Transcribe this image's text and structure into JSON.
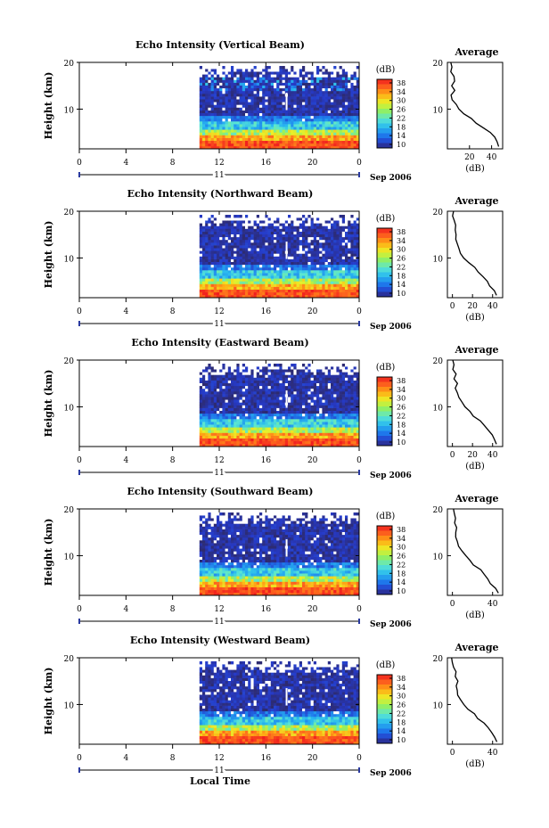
{
  "figure": {
    "xlabel": "Local Time",
    "x_ticks": [
      "0",
      "4",
      "8",
      "12",
      "16",
      "20",
      "0"
    ],
    "day_label": "11",
    "date_label": "Sep 2006",
    "ylabel": "Height (km)",
    "y_ticks": [
      "20",
      "10"
    ],
    "colorbar_unit": "(dB)",
    "colorbar_ticks": [
      "38",
      "34",
      "30",
      "26",
      "22",
      "18",
      "14",
      "10"
    ],
    "avg_title": "Average",
    "avg_xlabel": "(dB)",
    "avg_y_ticks": [
      "20",
      "10"
    ]
  },
  "chart_data": [
    {
      "type": "heatmap",
      "title": "Echo Intensity (Vertical Beam)",
      "xlabel": "Local Time",
      "ylabel": "Height (km)",
      "x_range_hours": [
        0,
        24
      ],
      "data_start_hour": 10.3,
      "ylim_km": [
        1.5,
        20
      ],
      "colorbar_range_db": [
        10,
        38
      ],
      "profile": {
        "xlabel": "(dB)",
        "x_ticks": [
          "20",
          "40"
        ],
        "xlim": [
          0,
          50
        ],
        "points": [
          [
            2,
            47
          ],
          [
            3,
            44
          ],
          [
            4,
            42
          ],
          [
            5,
            38
          ],
          [
            6,
            32
          ],
          [
            7,
            27
          ],
          [
            8,
            22
          ],
          [
            9,
            16
          ],
          [
            10,
            10
          ],
          [
            11,
            7
          ],
          [
            12,
            5
          ],
          [
            13,
            4
          ],
          [
            14,
            6
          ],
          [
            15,
            4
          ],
          [
            16,
            7
          ],
          [
            17,
            5
          ],
          [
            18,
            4
          ],
          [
            19,
            3
          ],
          [
            20,
            3
          ]
        ]
      }
    },
    {
      "type": "heatmap",
      "title": "Echo Intensity (Northward Beam)",
      "xlabel": "Local Time",
      "ylabel": "Height (km)",
      "x_range_hours": [
        0,
        24
      ],
      "data_start_hour": 10.3,
      "ylim_km": [
        1.5,
        20
      ],
      "colorbar_range_db": [
        10,
        38
      ],
      "profile": {
        "xlabel": "(dB)",
        "x_ticks": [
          "0",
          "20",
          "40"
        ],
        "xlim": [
          -5,
          50
        ],
        "points": [
          [
            2,
            45
          ],
          [
            3,
            42
          ],
          [
            4,
            38
          ],
          [
            5,
            34
          ],
          [
            6,
            30
          ],
          [
            7,
            26
          ],
          [
            8,
            21
          ],
          [
            9,
            16
          ],
          [
            10,
            12
          ],
          [
            11,
            9
          ],
          [
            12,
            6
          ],
          [
            13,
            5
          ],
          [
            14,
            3
          ],
          [
            15,
            4
          ],
          [
            16,
            2
          ],
          [
            17,
            3
          ],
          [
            18,
            2
          ],
          [
            19,
            1
          ],
          [
            20,
            0
          ]
        ]
      }
    },
    {
      "type": "heatmap",
      "title": "Echo Intensity (Eastward Beam)",
      "xlabel": "Local Time",
      "ylabel": "Height (km)",
      "x_range_hours": [
        0,
        24
      ],
      "data_start_hour": 10.3,
      "ylim_km": [
        1.5,
        20
      ],
      "colorbar_range_db": [
        10,
        38
      ],
      "profile": {
        "xlabel": "(dB)",
        "x_ticks": [
          "0",
          "20",
          "40"
        ],
        "xlim": [
          -5,
          50
        ],
        "points": [
          [
            2,
            45
          ],
          [
            3,
            43
          ],
          [
            4,
            39
          ],
          [
            5,
            35
          ],
          [
            6,
            31
          ],
          [
            7,
            27
          ],
          [
            8,
            22
          ],
          [
            9,
            17
          ],
          [
            10,
            12
          ],
          [
            11,
            9
          ],
          [
            12,
            6
          ],
          [
            13,
            4
          ],
          [
            14,
            3
          ],
          [
            15,
            5
          ],
          [
            16,
            2
          ],
          [
            17,
            4
          ],
          [
            18,
            1
          ],
          [
            19,
            2
          ],
          [
            20,
            0
          ]
        ]
      }
    },
    {
      "type": "heatmap",
      "title": "Echo Intensity (Southward Beam)",
      "xlabel": "Local Time",
      "ylabel": "Height (km)",
      "x_range_hours": [
        0,
        24
      ],
      "data_start_hour": 10.3,
      "ylim_km": [
        1.5,
        20
      ],
      "colorbar_range_db": [
        10,
        38
      ],
      "profile": {
        "xlabel": "(dB)",
        "x_ticks": [
          "0",
          "40"
        ],
        "xlim": [
          -5,
          50
        ],
        "points": [
          [
            2,
            45
          ],
          [
            3,
            42
          ],
          [
            4,
            38
          ],
          [
            5,
            35
          ],
          [
            6,
            31
          ],
          [
            7,
            27
          ],
          [
            8,
            22
          ],
          [
            9,
            17
          ],
          [
            10,
            13
          ],
          [
            11,
            9
          ],
          [
            12,
            7
          ],
          [
            13,
            5
          ],
          [
            14,
            4
          ],
          [
            15,
            3
          ],
          [
            16,
            5
          ],
          [
            17,
            2
          ],
          [
            18,
            3
          ],
          [
            19,
            1
          ],
          [
            20,
            0
          ]
        ]
      }
    },
    {
      "type": "heatmap",
      "title": "Echo Intensity (Westward Beam)",
      "xlabel": "Local Time",
      "ylabel": "Height (km)",
      "x_range_hours": [
        0,
        24
      ],
      "data_start_hour": 10.3,
      "ylim_km": [
        1.5,
        20
      ],
      "colorbar_range_db": [
        10,
        38
      ],
      "profile": {
        "xlabel": "(dB)",
        "x_ticks": [
          "0",
          "40"
        ],
        "xlim": [
          -5,
          50
        ],
        "points": [
          [
            2,
            45
          ],
          [
            3,
            43
          ],
          [
            4,
            39
          ],
          [
            5,
            36
          ],
          [
            6,
            31
          ],
          [
            7,
            26
          ],
          [
            8,
            21
          ],
          [
            9,
            16
          ],
          [
            10,
            12
          ],
          [
            11,
            8
          ],
          [
            12,
            6
          ],
          [
            13,
            5
          ],
          [
            14,
            4
          ],
          [
            15,
            6
          ],
          [
            16,
            3
          ],
          [
            17,
            4
          ],
          [
            18,
            2
          ],
          [
            19,
            1
          ],
          [
            20,
            0
          ]
        ]
      }
    }
  ]
}
